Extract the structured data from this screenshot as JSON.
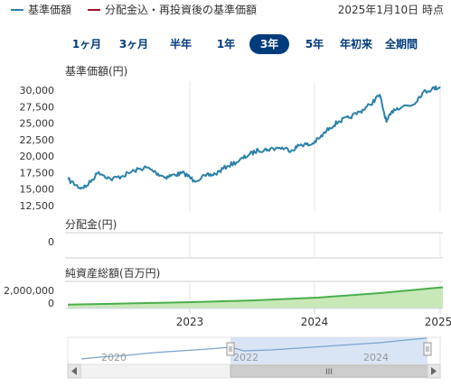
{
  "legend": {
    "base_price": {
      "label": "基準価額",
      "color": "#2c82a8"
    },
    "reinvested": {
      "label": "分配金込・再投資後の基準価額",
      "color": "#a3162a"
    }
  },
  "as_of": "2025年1月10日 時点",
  "tabs": [
    {
      "label": "1ヶ月",
      "active": false
    },
    {
      "label": "3ヶ月",
      "active": false
    },
    {
      "label": "半年",
      "active": false
    },
    {
      "label": "1年",
      "active": false
    },
    {
      "label": "3年",
      "active": true
    },
    {
      "label": "5年",
      "active": false
    },
    {
      "label": "年初来",
      "active": false
    },
    {
      "label": "全期間",
      "active": false
    }
  ],
  "chart_data": [
    {
      "type": "line",
      "title": "基準価額(円)",
      "ylim": [
        12500,
        31000
      ],
      "yticks": [
        "30,000",
        "27,500",
        "25,000",
        "22,500",
        "20,000",
        "17,500",
        "15,000",
        "12,500"
      ],
      "x_ticks": [
        "2023",
        "2024",
        "2025"
      ],
      "series": [
        {
          "name": "基準価額",
          "color": "#2c82a8",
          "x": [
            "2022-01-11",
            "2022-02-15",
            "2022-03-08",
            "2022-04-12",
            "2022-05-17",
            "2022-06-21",
            "2022-07-26",
            "2022-08-30",
            "2022-09-27",
            "2022-10-25",
            "2022-11-22",
            "2022-12-20",
            "2023-01-17",
            "2023-02-21",
            "2023-03-21",
            "2023-04-25",
            "2023-05-30",
            "2023-06-27",
            "2023-07-25",
            "2023-08-22",
            "2023-09-26",
            "2023-10-31",
            "2023-11-28",
            "2023-12-26",
            "2024-01-23",
            "2024-02-20",
            "2024-03-19",
            "2024-04-16",
            "2024-05-21",
            "2024-06-18",
            "2024-07-16",
            "2024-08-05",
            "2024-08-27",
            "2024-09-24",
            "2024-10-22",
            "2024-11-19",
            "2024-12-17",
            "2025-01-10"
          ],
          "values": [
            16500,
            15200,
            15500,
            17600,
            16500,
            17000,
            17800,
            18300,
            17500,
            16800,
            17200,
            17400,
            16300,
            17000,
            17300,
            18500,
            19300,
            20200,
            20900,
            21000,
            21300,
            20900,
            21800,
            21700,
            22800,
            24300,
            25300,
            25800,
            26800,
            27800,
            29300,
            25200,
            27100,
            27600,
            27800,
            29600,
            30200,
            30500
          ]
        }
      ]
    },
    {
      "type": "line",
      "title": "分配金(円)",
      "yticks": [
        "0"
      ],
      "series": [
        {
          "values": [
            0
          ]
        }
      ]
    },
    {
      "type": "area",
      "title": "純資産総額(百万円)",
      "yticks": [
        "2,000,000",
        "0"
      ],
      "ylim": [
        0,
        3000000
      ],
      "series": [
        {
          "color": "#4cae4c",
          "x": [
            "2022-01",
            "2022-07",
            "2023-01",
            "2023-07",
            "2024-01",
            "2024-07",
            "2025-01"
          ],
          "values": [
            420000,
            560000,
            700000,
            900000,
            1200000,
            1700000,
            2350000
          ]
        }
      ]
    }
  ],
  "navigator": {
    "years": [
      "2020",
      "2022",
      "2024"
    ],
    "scroll_grip": "III"
  }
}
